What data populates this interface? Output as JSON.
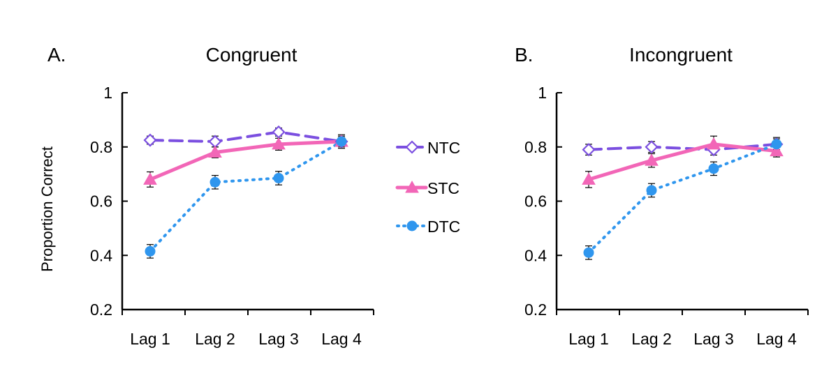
{
  "figure": {
    "ylabel": "Proportion Correct",
    "legend": [
      "NTC",
      "STC",
      "DTC"
    ]
  },
  "chart_data": [
    {
      "type": "line",
      "panel_letter": "A.",
      "title": "Congruent",
      "categories": [
        "Lag 1",
        "Lag 2",
        "Lag 3",
        "Lag 4"
      ],
      "ylabel": "Proportion Correct",
      "ylim": [
        0.2,
        1
      ],
      "yticks": [
        "0.2",
        "0.4",
        "0.6",
        "0.8",
        "1"
      ],
      "ytick_values": [
        0.2,
        0.4,
        0.6,
        0.8,
        1
      ],
      "series": [
        {
          "name": "NTC",
          "values": [
            0.825,
            0.82,
            0.855,
            0.82
          ],
          "errors": [
            0.015,
            0.02,
            0.015,
            0.015
          ]
        },
        {
          "name": "STC",
          "values": [
            0.68,
            0.78,
            0.81,
            0.82
          ],
          "errors": [
            0.028,
            0.02,
            0.022,
            0.02
          ]
        },
        {
          "name": "DTC",
          "values": [
            0.415,
            0.67,
            0.685,
            0.82
          ],
          "errors": [
            0.025,
            0.025,
            0.025,
            0.025
          ]
        }
      ]
    },
    {
      "type": "line",
      "panel_letter": "B.",
      "title": "Incongruent",
      "categories": [
        "Lag 1",
        "Lag 2",
        "Lag 3",
        "Lag 4"
      ],
      "ylabel": "",
      "ylim": [
        0.2,
        1
      ],
      "yticks": [
        "0.2",
        "0.4",
        "0.6",
        "0.8",
        "1"
      ],
      "ytick_values": [
        0.2,
        0.4,
        0.6,
        0.8,
        1
      ],
      "series": [
        {
          "name": "NTC",
          "values": [
            0.79,
            0.8,
            0.79,
            0.81
          ],
          "errors": [
            0.02,
            0.02,
            0.02,
            0.02
          ]
        },
        {
          "name": "STC",
          "values": [
            0.68,
            0.75,
            0.81,
            0.785
          ],
          "errors": [
            0.03,
            0.025,
            0.03,
            0.022
          ]
        },
        {
          "name": "DTC",
          "values": [
            0.41,
            0.64,
            0.72,
            0.81
          ],
          "errors": [
            0.025,
            0.025,
            0.025,
            0.025
          ]
        }
      ]
    }
  ],
  "styles": {
    "NTC": {
      "color": "#7B4FE0",
      "marker": "diamond-open",
      "dash": "18 10"
    },
    "STC": {
      "color": "#F266B7",
      "marker": "triangle",
      "dash": ""
    },
    "DTC": {
      "color": "#2F96EE",
      "marker": "circle",
      "dash": "2 8"
    }
  }
}
